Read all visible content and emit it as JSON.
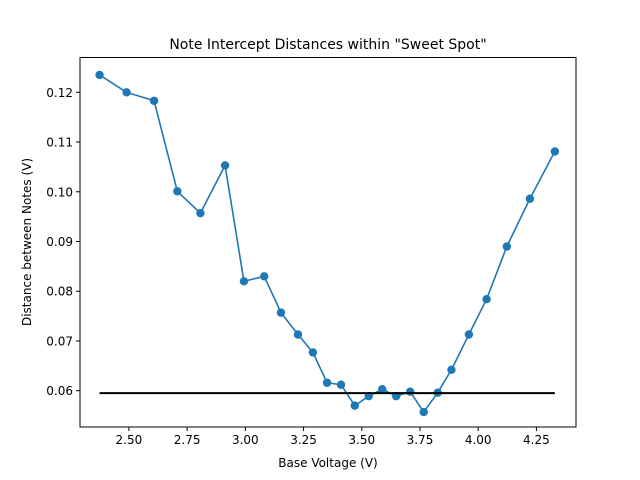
{
  "chart_data": {
    "type": "line",
    "title": "Note Intercept Distances within \"Sweet Spot\"",
    "xlabel": "Base Voltage (V)",
    "ylabel": "Distance between Notes (V)",
    "xlim": [
      2.29,
      4.42
    ],
    "ylim": [
      0.0527,
      0.127
    ],
    "xticks": [
      2.5,
      2.75,
      3.0,
      3.25,
      3.5,
      3.75,
      4.0,
      4.25
    ],
    "xtick_labels": [
      "2.50",
      "2.75",
      "3.00",
      "3.25",
      "3.50",
      "3.75",
      "4.00",
      "4.25"
    ],
    "yticks": [
      0.06,
      0.07,
      0.08,
      0.09,
      0.1,
      0.11,
      0.12
    ],
    "ytick_labels": [
      "0.06",
      "0.07",
      "0.08",
      "0.09",
      "0.10",
      "0.11",
      "0.12"
    ],
    "grid": false,
    "legend": "none",
    "series": [
      {
        "color": "#1f77b4",
        "marker": "circle",
        "x": [
          2.374,
          2.49,
          2.608,
          2.708,
          2.807,
          2.913,
          2.994,
          3.081,
          3.153,
          3.226,
          3.29,
          3.351,
          3.411,
          3.47,
          3.53,
          3.588,
          3.648,
          3.708,
          3.766,
          3.826,
          3.885,
          3.96,
          4.036,
          4.123,
          4.222,
          4.329
        ],
        "y": [
          0.1235,
          0.12,
          0.1183,
          0.1001,
          0.0957,
          0.1053,
          0.082,
          0.083,
          0.0757,
          0.0713,
          0.0677,
          0.0616,
          0.0612,
          0.057,
          0.0589,
          0.0603,
          0.0589,
          0.0598,
          0.0557,
          0.0596,
          0.0642,
          0.0713,
          0.0784,
          0.089,
          0.0986,
          0.1081
        ]
      },
      {
        "color": "#000000",
        "marker": "none",
        "x": [
          2.374,
          4.329
        ],
        "y": [
          0.0595,
          0.0595
        ]
      }
    ]
  }
}
